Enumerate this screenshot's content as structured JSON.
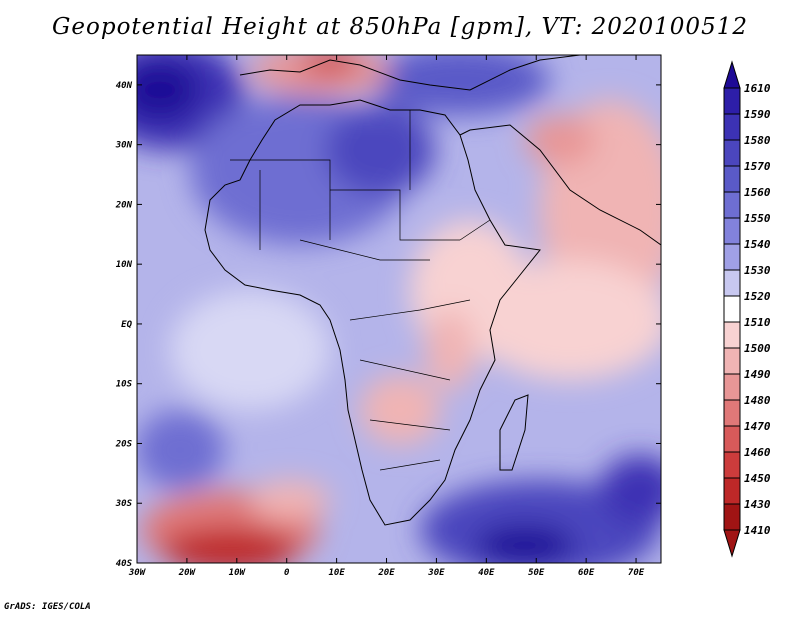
{
  "title": "Geopotential Height at 850hPa [gpm], VT: 2020100512",
  "credit": "GrADS: IGES/COLA",
  "map": {
    "lon_range": [
      -30,
      75
    ],
    "lat_range": [
      -40,
      45
    ],
    "lat_labels": [
      "40N",
      "30N",
      "20N",
      "10N",
      "EQ",
      "10S",
      "20S",
      "30S",
      "40S"
    ],
    "lat_values": [
      40,
      30,
      20,
      10,
      0,
      -10,
      -20,
      -30,
      -40
    ],
    "lon_labels": [
      "30W",
      "20W",
      "10W",
      "0",
      "10E",
      "20E",
      "30E",
      "40E",
      "50E",
      "60E",
      "70E"
    ],
    "lon_values": [
      -30,
      -20,
      -10,
      0,
      10,
      20,
      30,
      40,
      50,
      60,
      70
    ]
  },
  "colorbar": {
    "levels": [
      "1610",
      "1590",
      "1580",
      "1570",
      "1560",
      "1550",
      "1540",
      "1530",
      "1520",
      "1510",
      "1500",
      "1490",
      "1480",
      "1470",
      "1460",
      "1450",
      "1430",
      "1410"
    ],
    "colors": [
      "#1e0a96",
      "#2d1ea8",
      "#3c32b4",
      "#4b46be",
      "#5a5ac8",
      "#6e6ed2",
      "#8282dc",
      "#a0a0e6",
      "#c8c8f0",
      "#ffffff",
      "#f8d2d2",
      "#f0b4b4",
      "#e89696",
      "#e07878",
      "#d85a5a",
      "#cc3c3c",
      "#be2828",
      "#a01414"
    ]
  }
}
